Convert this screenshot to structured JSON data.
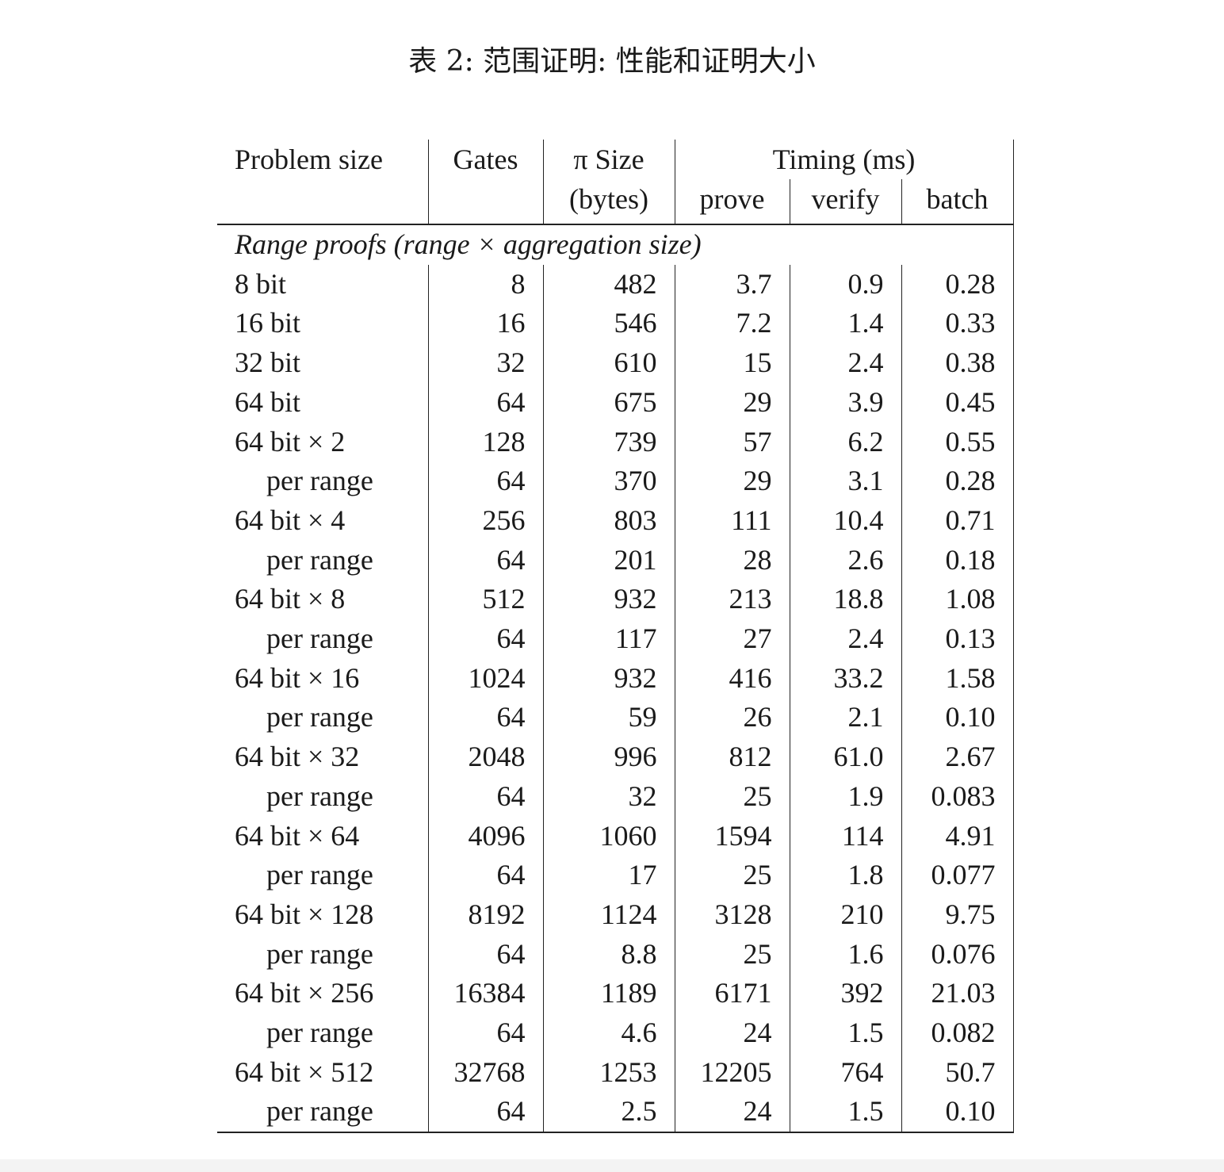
{
  "caption": "表 2: 范围证明: 性能和证明大小",
  "header": {
    "problem_size": "Problem size",
    "gates": "Gates",
    "pi_size": "π Size",
    "pi_size_unit": "(bytes)",
    "timing": "Timing (ms)",
    "prove": "prove",
    "verify": "verify",
    "batch": "batch"
  },
  "section_label": "Range proofs (range × aggregation size)",
  "rows": [
    {
      "problem": "8 bit",
      "gates": "8",
      "size": "482",
      "prove": "3.7",
      "verify": "0.9",
      "batch": "0.28",
      "sub": false
    },
    {
      "problem": "16 bit",
      "gates": "16",
      "size": "546",
      "prove": "7.2",
      "verify": "1.4",
      "batch": "0.33",
      "sub": false
    },
    {
      "problem": "32 bit",
      "gates": "32",
      "size": "610",
      "prove": "15",
      "verify": "2.4",
      "batch": "0.38",
      "sub": false
    },
    {
      "problem": "64 bit",
      "gates": "64",
      "size": "675",
      "prove": "29",
      "verify": "3.9",
      "batch": "0.45",
      "sub": false
    },
    {
      "problem": "64 bit × 2",
      "gates": "128",
      "size": "739",
      "prove": "57",
      "verify": "6.2",
      "batch": "0.55",
      "sub": false
    },
    {
      "problem": "per range",
      "gates": "64",
      "size": "370",
      "prove": "29",
      "verify": "3.1",
      "batch": "0.28",
      "sub": true
    },
    {
      "problem": "64 bit × 4",
      "gates": "256",
      "size": "803",
      "prove": "111",
      "verify": "10.4",
      "batch": "0.71",
      "sub": false
    },
    {
      "problem": "per range",
      "gates": "64",
      "size": "201",
      "prove": "28",
      "verify": "2.6",
      "batch": "0.18",
      "sub": true
    },
    {
      "problem": "64 bit × 8",
      "gates": "512",
      "size": "932",
      "prove": "213",
      "verify": "18.8",
      "batch": "1.08",
      "sub": false
    },
    {
      "problem": "per range",
      "gates": "64",
      "size": "117",
      "prove": "27",
      "verify": "2.4",
      "batch": "0.13",
      "sub": true
    },
    {
      "problem": "64 bit × 16",
      "gates": "1024",
      "size": "932",
      "prove": "416",
      "verify": "33.2",
      "batch": "1.58",
      "sub": false
    },
    {
      "problem": "per range",
      "gates": "64",
      "size": "59",
      "prove": "26",
      "verify": "2.1",
      "batch": "0.10",
      "sub": true
    },
    {
      "problem": "64 bit × 32",
      "gates": "2048",
      "size": "996",
      "prove": "812",
      "verify": "61.0",
      "batch": "2.67",
      "sub": false
    },
    {
      "problem": "per range",
      "gates": "64",
      "size": "32",
      "prove": "25",
      "verify": "1.9",
      "batch": "0.083",
      "sub": true
    },
    {
      "problem": "64 bit × 64",
      "gates": "4096",
      "size": "1060",
      "prove": "1594",
      "verify": "114",
      "batch": "4.91",
      "sub": false
    },
    {
      "problem": "per range",
      "gates": "64",
      "size": "17",
      "prove": "25",
      "verify": "1.8",
      "batch": "0.077",
      "sub": true
    },
    {
      "problem": "64 bit × 128",
      "gates": "8192",
      "size": "1124",
      "prove": "3128",
      "verify": "210",
      "batch": "9.75",
      "sub": false
    },
    {
      "problem": "per range",
      "gates": "64",
      "size": "8.8",
      "prove": "25",
      "verify": "1.6",
      "batch": "0.076",
      "sub": true
    },
    {
      "problem": "64 bit × 256",
      "gates": "16384",
      "size": "1189",
      "prove": "6171",
      "verify": "392",
      "batch": "21.03",
      "sub": false
    },
    {
      "problem": "per range",
      "gates": "64",
      "size": "4.6",
      "prove": "24",
      "verify": "1.5",
      "batch": "0.082",
      "sub": true
    },
    {
      "problem": "64 bit × 512",
      "gates": "32768",
      "size": "1253",
      "prove": "12205",
      "verify": "764",
      "batch": "50.7",
      "sub": false
    },
    {
      "problem": "per range",
      "gates": "64",
      "size": "2.5",
      "prove": "24",
      "verify": "1.5",
      "batch": "0.10",
      "sub": true
    }
  ]
}
